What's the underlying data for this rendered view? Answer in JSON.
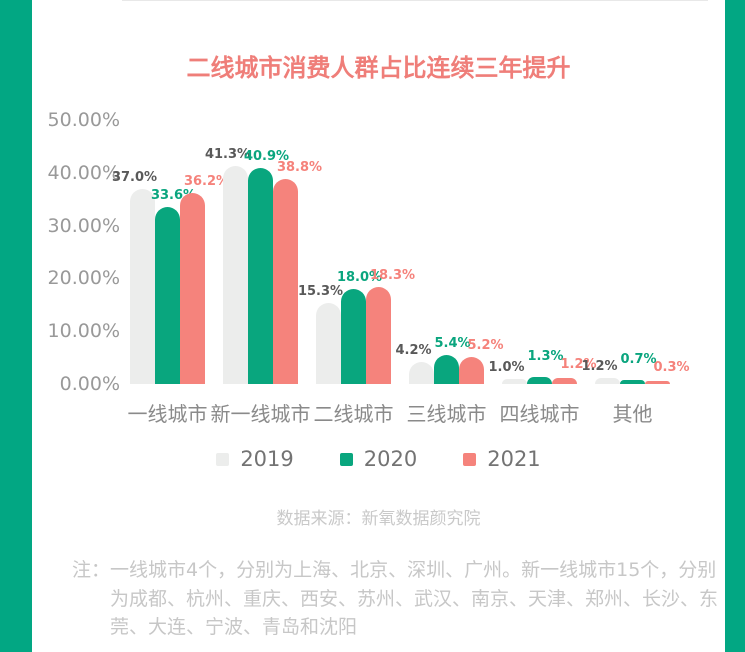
{
  "page": {
    "title": "二线城市消费人群占比连续三年提升",
    "source": "数据来源：新氧数据颜究院",
    "note_prefix": "注：",
    "note_lines": [
      "一线城市4个，分别为上海、北京、深圳、广州。新一线城市15个，分别",
      "为成都、杭州、重庆、西安、苏州、武汉、南京、天津、郑州、长沙、东",
      "莞、大连、宁波、青岛和沈阳"
    ]
  },
  "colors": {
    "edge_green": "#02a783",
    "title_red": "#ef7e79",
    "bar_2019": "#ecedec",
    "bar_2020": "#09a67e",
    "bar_2021": "#f5837c",
    "label_2019": "#595959",
    "label_2020": "#0aa57e",
    "label_2021": "#f5827b",
    "axis_text": "#999999",
    "category_text": "#8a8a8a",
    "legend_text": "#737373",
    "muted_text": "#c7c7c7",
    "baseline": "#e8e8e8"
  },
  "chart_data": {
    "type": "bar",
    "title": "二线城市消费人群占比连续三年提升",
    "categories": [
      "一线城市",
      "新一线城市",
      "二线城市",
      "三线城市",
      "四线城市",
      "其他"
    ],
    "series": [
      {
        "name": "2019",
        "values": [
          37.0,
          41.3,
          15.3,
          4.2,
          1.0,
          1.2
        ]
      },
      {
        "name": "2020",
        "values": [
          33.6,
          40.9,
          18.0,
          5.4,
          1.3,
          0.7
        ]
      },
      {
        "name": "2021",
        "values": [
          36.2,
          38.8,
          18.3,
          5.2,
          1.2,
          0.3
        ]
      }
    ],
    "yticks": [
      "50.00%",
      "40.00%",
      "30.00%",
      "20.00%",
      "10.00%",
      "0.00%"
    ],
    "ylim": [
      0,
      50
    ],
    "xlabel": "",
    "ylabel": "",
    "grid": false,
    "legend_position": "bottom",
    "value_label_format": "0.0%",
    "source": "数据来源：新氧数据颜究院"
  }
}
